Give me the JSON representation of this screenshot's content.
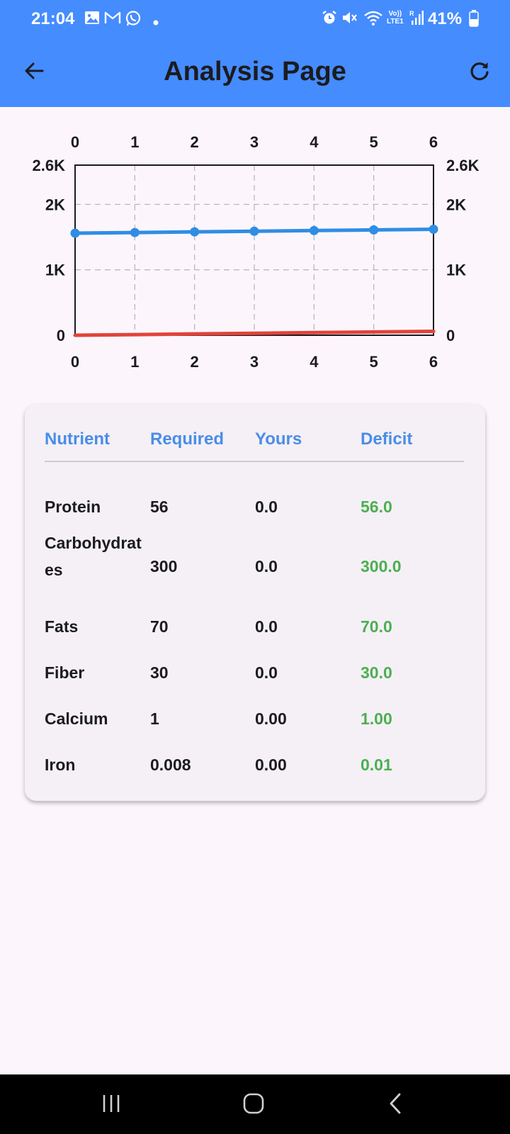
{
  "status_bar": {
    "time": "21:04",
    "battery": "41%",
    "net_top": "Vo))",
    "net_bottom": "LTE1"
  },
  "app_bar": {
    "title": "Analysis Page",
    "back_icon": "arrow-back-icon",
    "refresh_icon": "refresh-icon"
  },
  "chart_data": {
    "type": "line",
    "x": [
      0,
      1,
      2,
      3,
      4,
      5,
      6
    ],
    "x_tick_labels": [
      "0",
      "1",
      "2",
      "3",
      "4",
      "5",
      "6"
    ],
    "y_tick_labels": [
      "2.6K",
      "2K",
      "1K",
      "0"
    ],
    "y_ticks": [
      2600,
      2000,
      1000,
      0
    ],
    "ylim": [
      0,
      2600
    ],
    "xlim": [
      0,
      6
    ],
    "grid": true,
    "series": [
      {
        "color": "#2f8de4",
        "values": [
          1560,
          1570,
          1580,
          1590,
          1600,
          1610,
          1620
        ],
        "markers": true
      },
      {
        "color": "#e2433a",
        "values": [
          0,
          10,
          20,
          30,
          40,
          50,
          60
        ],
        "markers": false
      }
    ]
  },
  "table": {
    "headers": [
      "Nutrient",
      "Required",
      "Yours",
      "Deficit"
    ],
    "rows": [
      {
        "nutrient": "Protein",
        "required": "56",
        "yours": "0.0",
        "deficit": "56.0"
      },
      {
        "nutrient": "Carbohydrates",
        "required": "300",
        "yours": "0.0",
        "deficit": "300.0"
      },
      {
        "nutrient": "Fats",
        "required": "70",
        "yours": "0.0",
        "deficit": "70.0"
      },
      {
        "nutrient": "Fiber",
        "required": "30",
        "yours": "0.0",
        "deficit": "30.0"
      },
      {
        "nutrient": "Calcium",
        "required": "1",
        "yours": "0.00",
        "deficit": "1.00"
      },
      {
        "nutrient": "Iron",
        "required": "0.008",
        "yours": "0.00",
        "deficit": "0.01"
      }
    ]
  },
  "nav_bar": {
    "recents_icon": "recents-icon",
    "home_icon": "home-icon",
    "back_icon": "back-icon"
  }
}
